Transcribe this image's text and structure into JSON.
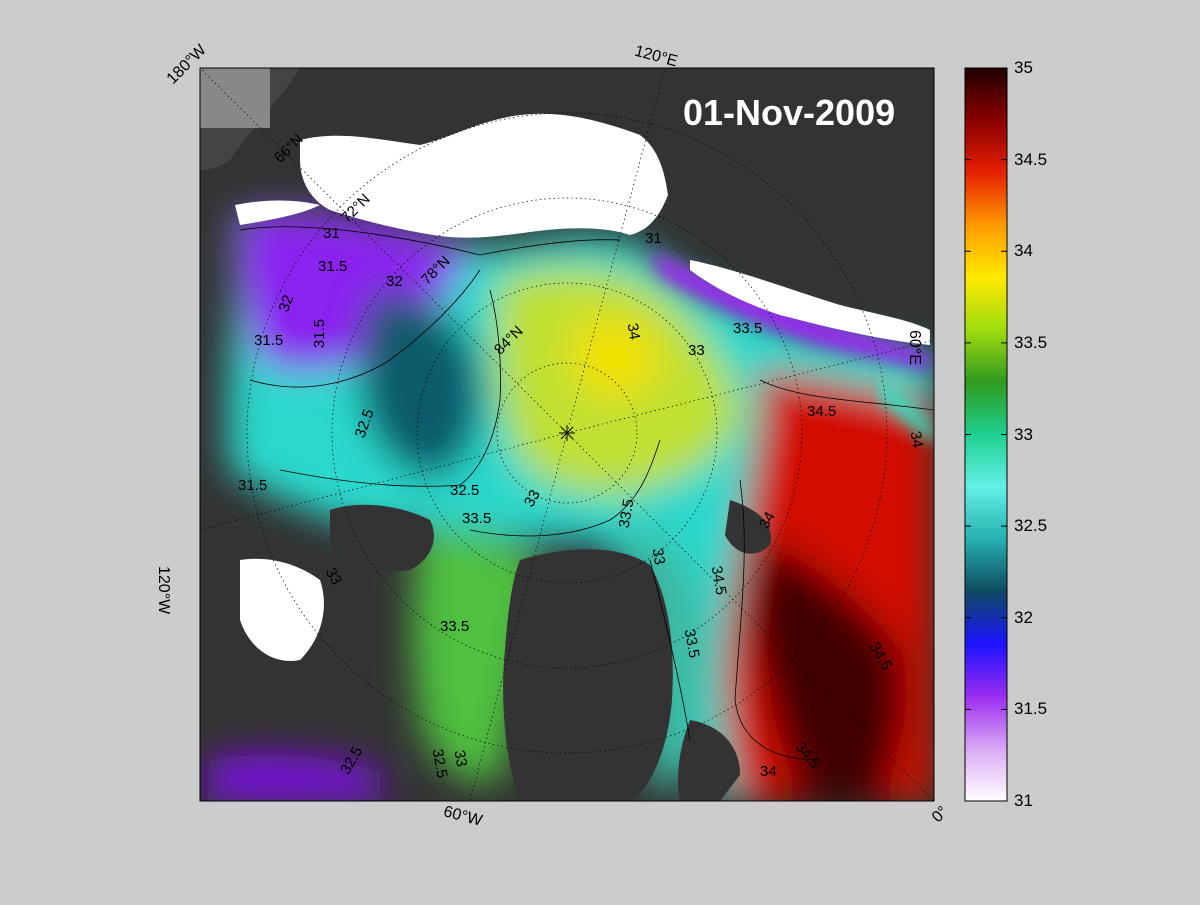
{
  "map": {
    "date_label": "01-Nov-2009",
    "projection": "polar-stereographic",
    "center": "north-pole",
    "longitude_labels": [
      "180°W",
      "120°E",
      "60°E",
      "0°",
      "60°W",
      "120°W"
    ],
    "latitude_labels": [
      "66°N",
      "72°N",
      "78°N",
      "84°N"
    ],
    "contour_labels": [
      "31",
      "31.5",
      "31.5",
      "32",
      "32",
      "31.5",
      "31.5",
      "32.5",
      "32.5",
      "33",
      "33.5",
      "33.5",
      "33.5",
      "33",
      "34",
      "34.5",
      "34",
      "34.5",
      "34",
      "34.5",
      "34.5",
      "34",
      "33.5",
      "33",
      "33",
      "32.5",
      "33",
      "31",
      "32.5",
      "33.5"
    ],
    "colors": {
      "land": "#333333",
      "ice_shelf": "#ffffff",
      "background": "#cccccc"
    }
  },
  "colorbar": {
    "min": 31,
    "max": 35,
    "ticks": [
      "35",
      "34.5",
      "34",
      "33.5",
      "33",
      "32.5",
      "32",
      "31.5",
      "31"
    ],
    "colormap": [
      "#ffffff",
      "#d9a9f5",
      "#9a2cf0",
      "#1c12ff",
      "#0e4a60",
      "#26b0b0",
      "#64f0e6",
      "#1fd090",
      "#2f9a1e",
      "#a0dc10",
      "#ffea00",
      "#ff9a00",
      "#e62000",
      "#8a0000",
      "#200000"
    ]
  }
}
